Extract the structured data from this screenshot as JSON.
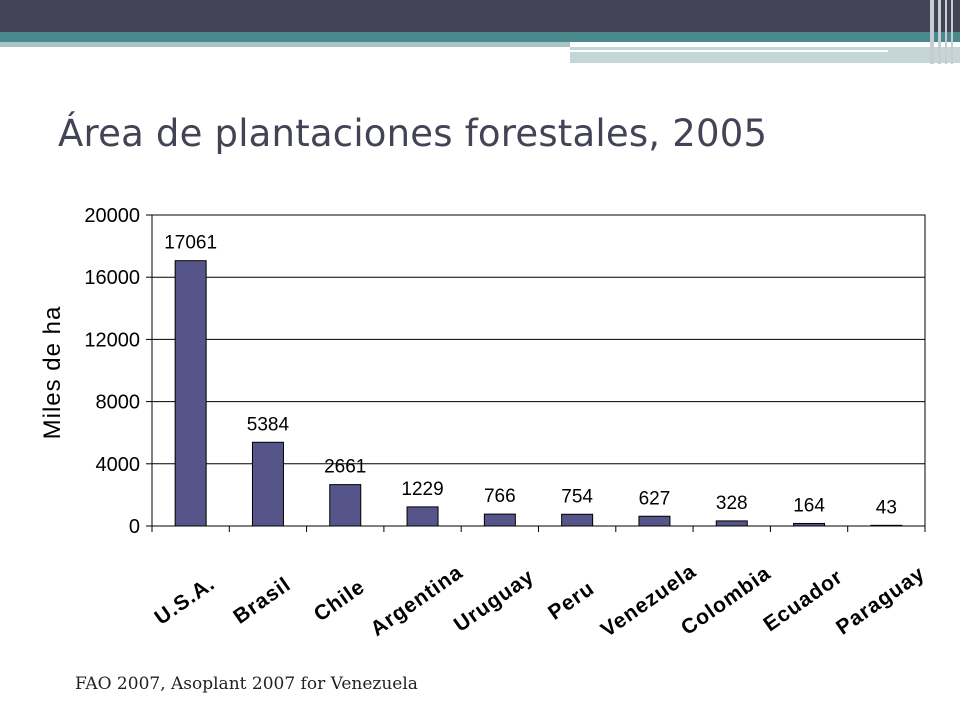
{
  "title": "Área de plantaciones forestales, 2005",
  "source": "FAO 2007, Asoplant 2007 for Venezuela",
  "colors": {
    "bar": "#55558a",
    "header": "#424456",
    "accent": "#4a8a8c"
  },
  "chart_data": {
    "type": "bar",
    "title": "",
    "xlabel": "",
    "ylabel": "Miles de ha",
    "categories": [
      "U.S.A.",
      "Brasil",
      "Chile",
      "Argentina",
      "Uruguay",
      "Peru",
      "Venezuela",
      "Colombia",
      "Ecuador",
      "Paraguay"
    ],
    "values": [
      17061,
      5384,
      2661,
      1229,
      766,
      754,
      627,
      328,
      164,
      43
    ],
    "ylim": [
      0,
      20000
    ],
    "yticks": [
      0,
      4000,
      8000,
      12000,
      16000,
      20000
    ],
    "grid": true,
    "legend": "none"
  }
}
